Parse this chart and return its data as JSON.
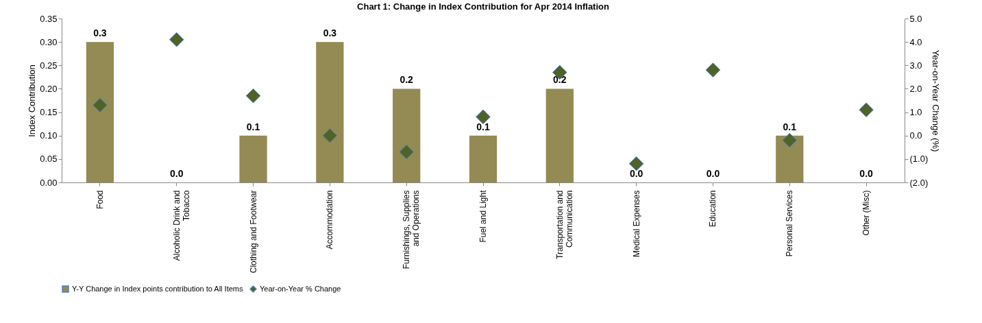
{
  "chart_data": {
    "type": "bar",
    "title": "Chart 1: Change in Index Contribution for Apr 2014 Inflation",
    "ylabel": "Index Contribution",
    "y2label": "Year-on-Year Change (%)",
    "categories": [
      "Food",
      "Alcoholic Drink and Tobacco",
      "Clothing and Footwear",
      "Accommodation",
      "Furnishings, Supplies and Operations",
      "Fuel and Light",
      "Transportation and Communication",
      "Medical Expenses",
      "Education",
      "Personal Services",
      "Other (Misc)"
    ],
    "series": [
      {
        "name": "Y-Y Change in Index points contribution to All Items",
        "color": "#948a54",
        "values": [
          0.3,
          0,
          0.1,
          0.3,
          0.2,
          0.1,
          0.2,
          0,
          0,
          0.1,
          0
        ],
        "value_labels": [
          "0.3",
          "0.0",
          "0.1",
          "0.3",
          "0.2",
          "0.1",
          "0.2",
          "0.0",
          "0.0",
          "0.1",
          "0.0"
        ]
      },
      {
        "name": "Year-on-Year % Change",
        "type": "scatter",
        "axis": "y2",
        "marker": "diamond",
        "color": "#4f6228",
        "values": [
          1.3,
          4.1,
          1.7,
          0.0,
          -0.7,
          0.8,
          2.7,
          -1.2,
          2.8,
          -0.2,
          1.1
        ]
      }
    ],
    "ylim": [
      0,
      0.35
    ],
    "yticks": [
      {
        "value": 0,
        "label": "0.00"
      },
      {
        "value": 0.05,
        "label": "0.05"
      },
      {
        "value": 0.1,
        "label": "0.10"
      },
      {
        "value": 0.15,
        "label": "0.15"
      },
      {
        "value": 0.2,
        "label": "0.20"
      },
      {
        "value": 0.25,
        "label": "0.25"
      },
      {
        "value": 0.3,
        "label": "0.30"
      },
      {
        "value": 0.35,
        "label": "0.35"
      }
    ],
    "y2lim": [
      -2,
      5
    ],
    "y2ticks": [
      {
        "value": -2,
        "label": "(2.0)"
      },
      {
        "value": -1,
        "label": "(1.0)"
      },
      {
        "value": 0,
        "label": "0.0"
      },
      {
        "value": 1,
        "label": "1.0"
      },
      {
        "value": 2,
        "label": "2.0"
      },
      {
        "value": 3,
        "label": "3.0"
      },
      {
        "value": 4,
        "label": "4.0"
      },
      {
        "value": 5,
        "label": "5.0"
      }
    ],
    "grid": false,
    "legend": "bottom"
  }
}
